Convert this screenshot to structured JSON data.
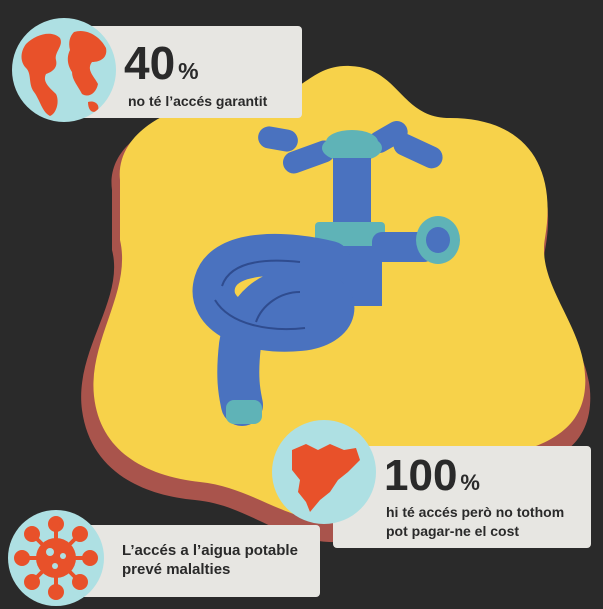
{
  "stats": [
    {
      "value": "40",
      "unit": "%",
      "caption": "no té l’accés garantit",
      "icon": "globe-icon"
    },
    {
      "value": "100",
      "unit": "%",
      "caption_lines": [
        "hi té accés però no tothom",
        "pot pagar-ne el cost"
      ],
      "icon": "catalonia-map-icon"
    }
  ],
  "note": {
    "caption_lines": [
      "L’accés a l’aigua potable",
      "prevé malalties"
    ],
    "icon": "virus-icon"
  },
  "colors": {
    "background": "#2a2a2a",
    "blob": "#f7d24a",
    "blob_shadow": "#a9544c",
    "tap_blue": "#4a72bf",
    "tap_teal": "#5fb3b7",
    "icon_orange": "#e8512a",
    "card": "#e7e6e2"
  }
}
